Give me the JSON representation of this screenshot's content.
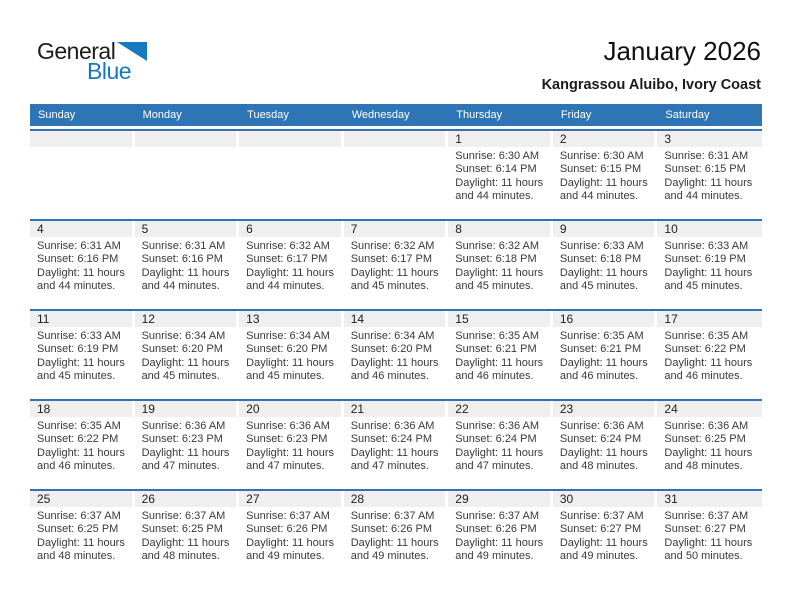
{
  "logo": {
    "general": "General",
    "blue": "Blue"
  },
  "header": {
    "title": "January 2026",
    "subtitle": "Kangrassou Aluibo, Ivory Coast"
  },
  "weekdays": [
    "Sunday",
    "Monday",
    "Tuesday",
    "Wednesday",
    "Thursday",
    "Friday",
    "Saturday"
  ],
  "weeks": [
    [
      null,
      null,
      null,
      null,
      {
        "day": "1",
        "lines": [
          "Sunrise: 6:30 AM",
          "Sunset: 6:14 PM",
          "Daylight: 11 hours",
          "and 44 minutes."
        ]
      },
      {
        "day": "2",
        "lines": [
          "Sunrise: 6:30 AM",
          "Sunset: 6:15 PM",
          "Daylight: 11 hours",
          "and 44 minutes."
        ]
      },
      {
        "day": "3",
        "lines": [
          "Sunrise: 6:31 AM",
          "Sunset: 6:15 PM",
          "Daylight: 11 hours",
          "and 44 minutes."
        ]
      }
    ],
    [
      {
        "day": "4",
        "lines": [
          "Sunrise: 6:31 AM",
          "Sunset: 6:16 PM",
          "Daylight: 11 hours",
          "and 44 minutes."
        ]
      },
      {
        "day": "5",
        "lines": [
          "Sunrise: 6:31 AM",
          "Sunset: 6:16 PM",
          "Daylight: 11 hours",
          "and 44 minutes."
        ]
      },
      {
        "day": "6",
        "lines": [
          "Sunrise: 6:32 AM",
          "Sunset: 6:17 PM",
          "Daylight: 11 hours",
          "and 44 minutes."
        ]
      },
      {
        "day": "7",
        "lines": [
          "Sunrise: 6:32 AM",
          "Sunset: 6:17 PM",
          "Daylight: 11 hours",
          "and 45 minutes."
        ]
      },
      {
        "day": "8",
        "lines": [
          "Sunrise: 6:32 AM",
          "Sunset: 6:18 PM",
          "Daylight: 11 hours",
          "and 45 minutes."
        ]
      },
      {
        "day": "9",
        "lines": [
          "Sunrise: 6:33 AM",
          "Sunset: 6:18 PM",
          "Daylight: 11 hours",
          "and 45 minutes."
        ]
      },
      {
        "day": "10",
        "lines": [
          "Sunrise: 6:33 AM",
          "Sunset: 6:19 PM",
          "Daylight: 11 hours",
          "and 45 minutes."
        ]
      }
    ],
    [
      {
        "day": "11",
        "lines": [
          "Sunrise: 6:33 AM",
          "Sunset: 6:19 PM",
          "Daylight: 11 hours",
          "and 45 minutes."
        ]
      },
      {
        "day": "12",
        "lines": [
          "Sunrise: 6:34 AM",
          "Sunset: 6:20 PM",
          "Daylight: 11 hours",
          "and 45 minutes."
        ]
      },
      {
        "day": "13",
        "lines": [
          "Sunrise: 6:34 AM",
          "Sunset: 6:20 PM",
          "Daylight: 11 hours",
          "and 45 minutes."
        ]
      },
      {
        "day": "14",
        "lines": [
          "Sunrise: 6:34 AM",
          "Sunset: 6:20 PM",
          "Daylight: 11 hours",
          "and 46 minutes."
        ]
      },
      {
        "day": "15",
        "lines": [
          "Sunrise: 6:35 AM",
          "Sunset: 6:21 PM",
          "Daylight: 11 hours",
          "and 46 minutes."
        ]
      },
      {
        "day": "16",
        "lines": [
          "Sunrise: 6:35 AM",
          "Sunset: 6:21 PM",
          "Daylight: 11 hours",
          "and 46 minutes."
        ]
      },
      {
        "day": "17",
        "lines": [
          "Sunrise: 6:35 AM",
          "Sunset: 6:22 PM",
          "Daylight: 11 hours",
          "and 46 minutes."
        ]
      }
    ],
    [
      {
        "day": "18",
        "lines": [
          "Sunrise: 6:35 AM",
          "Sunset: 6:22 PM",
          "Daylight: 11 hours",
          "and 46 minutes."
        ]
      },
      {
        "day": "19",
        "lines": [
          "Sunrise: 6:36 AM",
          "Sunset: 6:23 PM",
          "Daylight: 11 hours",
          "and 47 minutes."
        ]
      },
      {
        "day": "20",
        "lines": [
          "Sunrise: 6:36 AM",
          "Sunset: 6:23 PM",
          "Daylight: 11 hours",
          "and 47 minutes."
        ]
      },
      {
        "day": "21",
        "lines": [
          "Sunrise: 6:36 AM",
          "Sunset: 6:24 PM",
          "Daylight: 11 hours",
          "and 47 minutes."
        ]
      },
      {
        "day": "22",
        "lines": [
          "Sunrise: 6:36 AM",
          "Sunset: 6:24 PM",
          "Daylight: 11 hours",
          "and 47 minutes."
        ]
      },
      {
        "day": "23",
        "lines": [
          "Sunrise: 6:36 AM",
          "Sunset: 6:24 PM",
          "Daylight: 11 hours",
          "and 48 minutes."
        ]
      },
      {
        "day": "24",
        "lines": [
          "Sunrise: 6:36 AM",
          "Sunset: 6:25 PM",
          "Daylight: 11 hours",
          "and 48 minutes."
        ]
      }
    ],
    [
      {
        "day": "25",
        "lines": [
          "Sunrise: 6:37 AM",
          "Sunset: 6:25 PM",
          "Daylight: 11 hours",
          "and 48 minutes."
        ]
      },
      {
        "day": "26",
        "lines": [
          "Sunrise: 6:37 AM",
          "Sunset: 6:25 PM",
          "Daylight: 11 hours",
          "and 48 minutes."
        ]
      },
      {
        "day": "27",
        "lines": [
          "Sunrise: 6:37 AM",
          "Sunset: 6:26 PM",
          "Daylight: 11 hours",
          "and 49 minutes."
        ]
      },
      {
        "day": "28",
        "lines": [
          "Sunrise: 6:37 AM",
          "Sunset: 6:26 PM",
          "Daylight: 11 hours",
          "and 49 minutes."
        ]
      },
      {
        "day": "29",
        "lines": [
          "Sunrise: 6:37 AM",
          "Sunset: 6:26 PM",
          "Daylight: 11 hours",
          "and 49 minutes."
        ]
      },
      {
        "day": "30",
        "lines": [
          "Sunrise: 6:37 AM",
          "Sunset: 6:27 PM",
          "Daylight: 11 hours",
          "and 49 minutes."
        ]
      },
      {
        "day": "31",
        "lines": [
          "Sunrise: 6:37 AM",
          "Sunset: 6:27 PM",
          "Daylight: 11 hours",
          "and 50 minutes."
        ]
      }
    ]
  ],
  "colors": {
    "header_blue": "#2E75B6",
    "line_blue": "#2E74B5",
    "band_gray": "#EFEFEF",
    "logo_blue": "#1779BF"
  }
}
